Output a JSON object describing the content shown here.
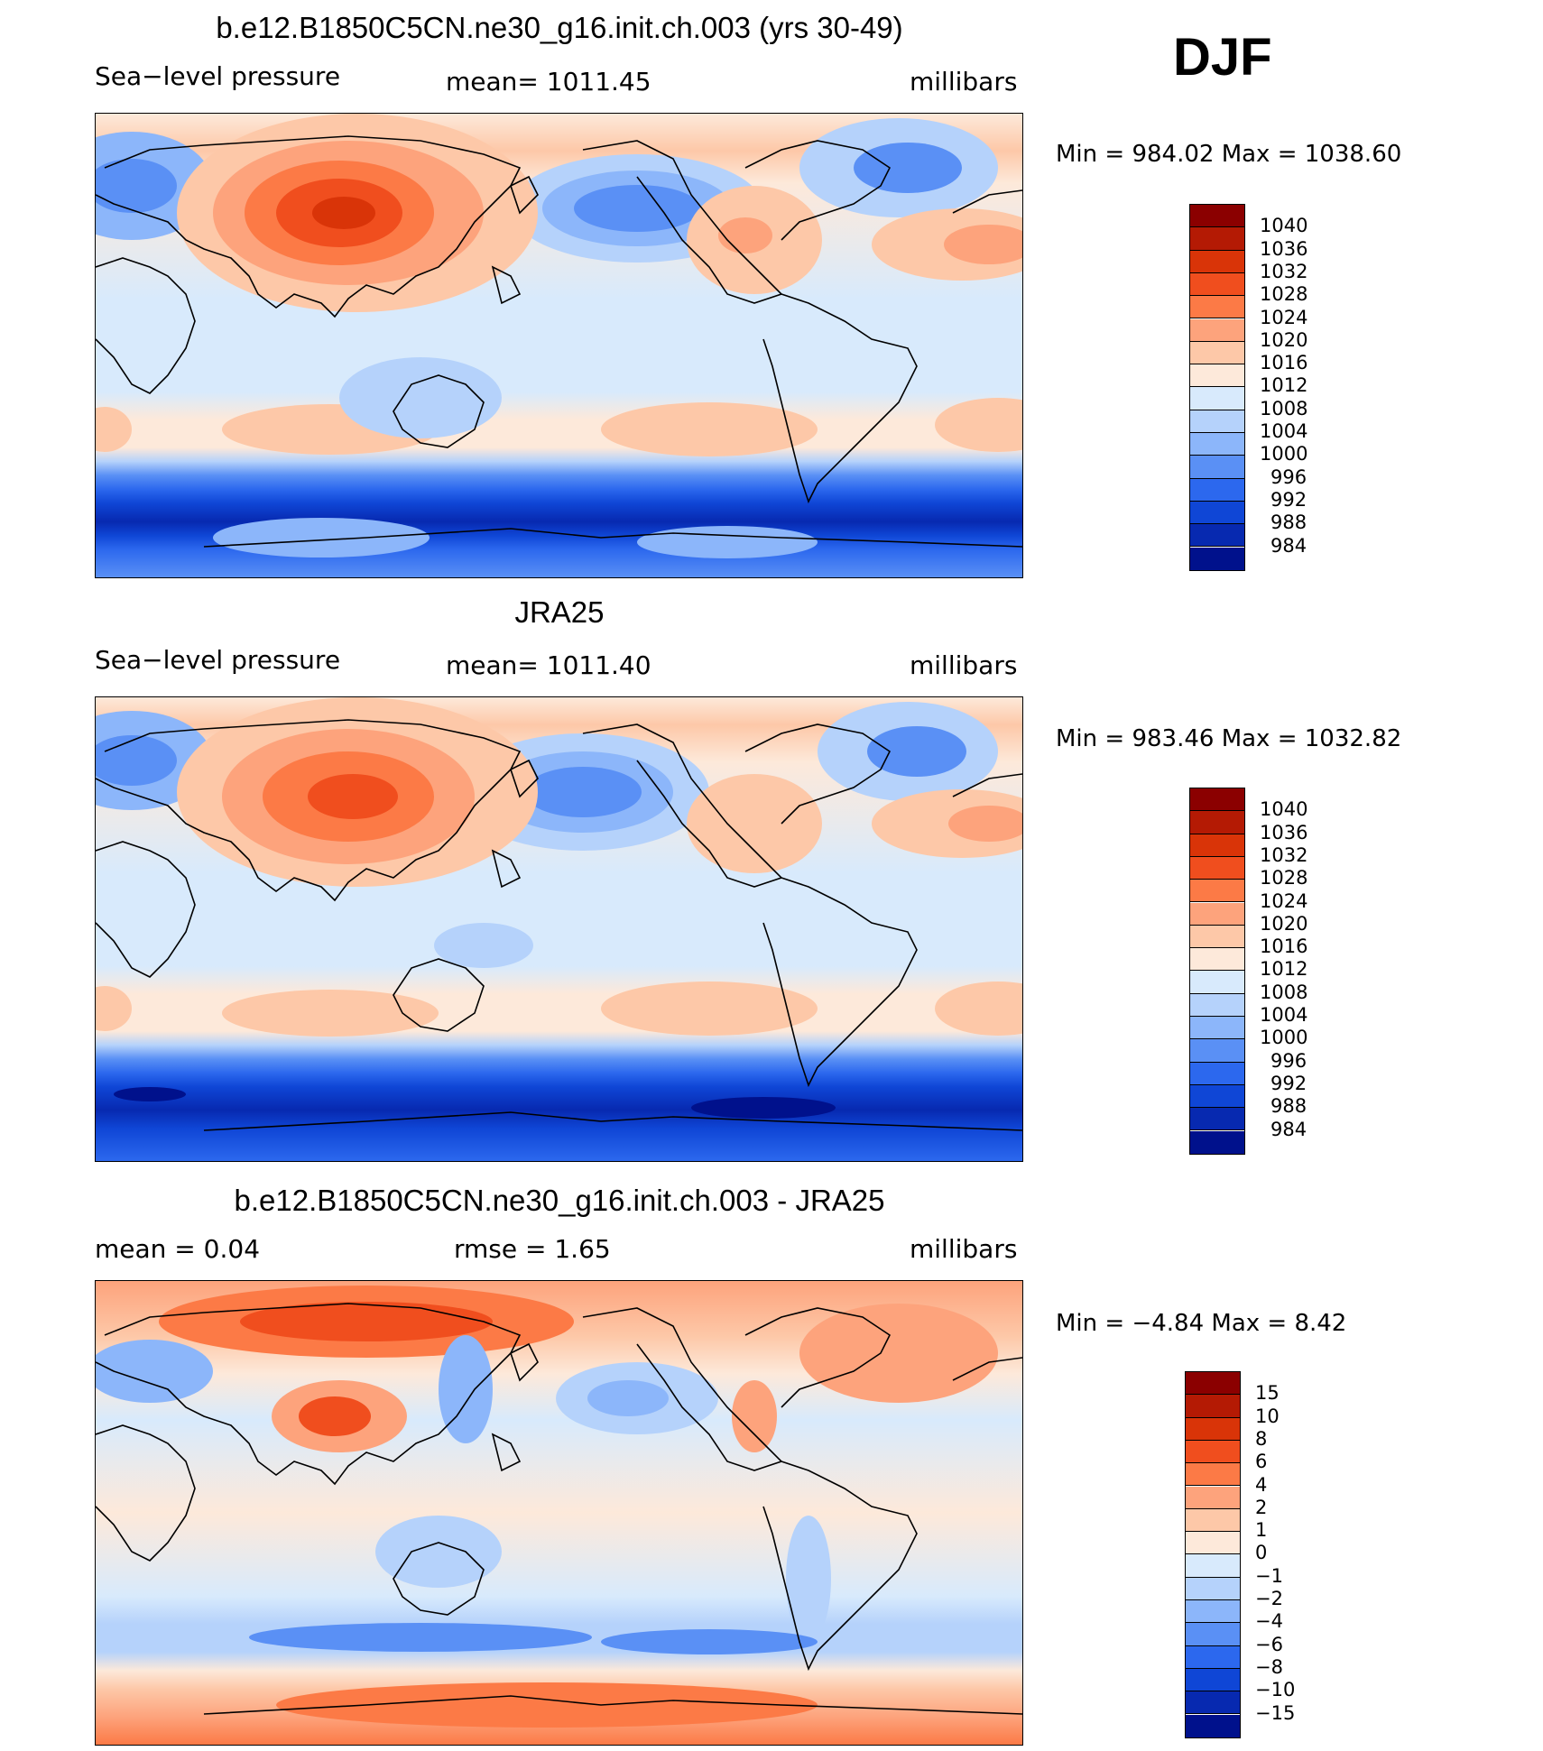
{
  "season": "DJF",
  "panels": [
    {
      "title": "b.e12.B1850C5CN.ne30_g16.init.ch.003 (yrs 30-49)",
      "left_label": "Sea−level pressure",
      "center_label": "mean=  1011.45",
      "units": "millibars",
      "minmax": "Min  =  984.02  Max  =  1038.60",
      "scale": "pressure"
    },
    {
      "title": "JRA25",
      "left_label": "Sea−level pressure",
      "center_label": "mean=  1011.40",
      "units": "millibars",
      "minmax": "Min  =  983.46  Max  =  1032.82",
      "scale": "pressure"
    },
    {
      "title": "b.e12.B1850C5CN.ne30_g16.init.ch.003 - JRA25",
      "left_label": "mean  =      0.04",
      "center_label": "rmse  =      1.65",
      "units": "millibars",
      "minmax": "Min  =   −4.84  Max  =      8.42",
      "scale": "difference"
    }
  ],
  "colorbars": {
    "pressure": {
      "levels": [
        "1040",
        "1036",
        "1032",
        "1028",
        "1024",
        "1020",
        "1016",
        "1012",
        "1008",
        "1004",
        "1000",
        "996",
        "992",
        "988",
        "984"
      ],
      "colors": [
        "#8b0000",
        "#b41a04",
        "#d93408",
        "#f04e1e",
        "#fc7a46",
        "#fda37c",
        "#fdc8a8",
        "#fde9da",
        "#d8eafc",
        "#b5d2fb",
        "#8cb6fa",
        "#5a90f5",
        "#2c68ee",
        "#0f46d6",
        "#0729b0",
        "#00118c"
      ]
    },
    "difference": {
      "levels": [
        "15",
        "10",
        "8",
        "6",
        "4",
        "2",
        "1",
        "0",
        "−1",
        "−2",
        "−4",
        "−6",
        "−8",
        "−10",
        "−15"
      ],
      "colors": [
        "#8b0000",
        "#b41a04",
        "#d93408",
        "#f04e1e",
        "#fc7a46",
        "#fda37c",
        "#fdc8a8",
        "#fde9da",
        "#d8eafc",
        "#b5d2fb",
        "#8cb6fa",
        "#5a90f5",
        "#2c68ee",
        "#0f46d6",
        "#0729b0",
        "#00118c"
      ]
    }
  }
}
